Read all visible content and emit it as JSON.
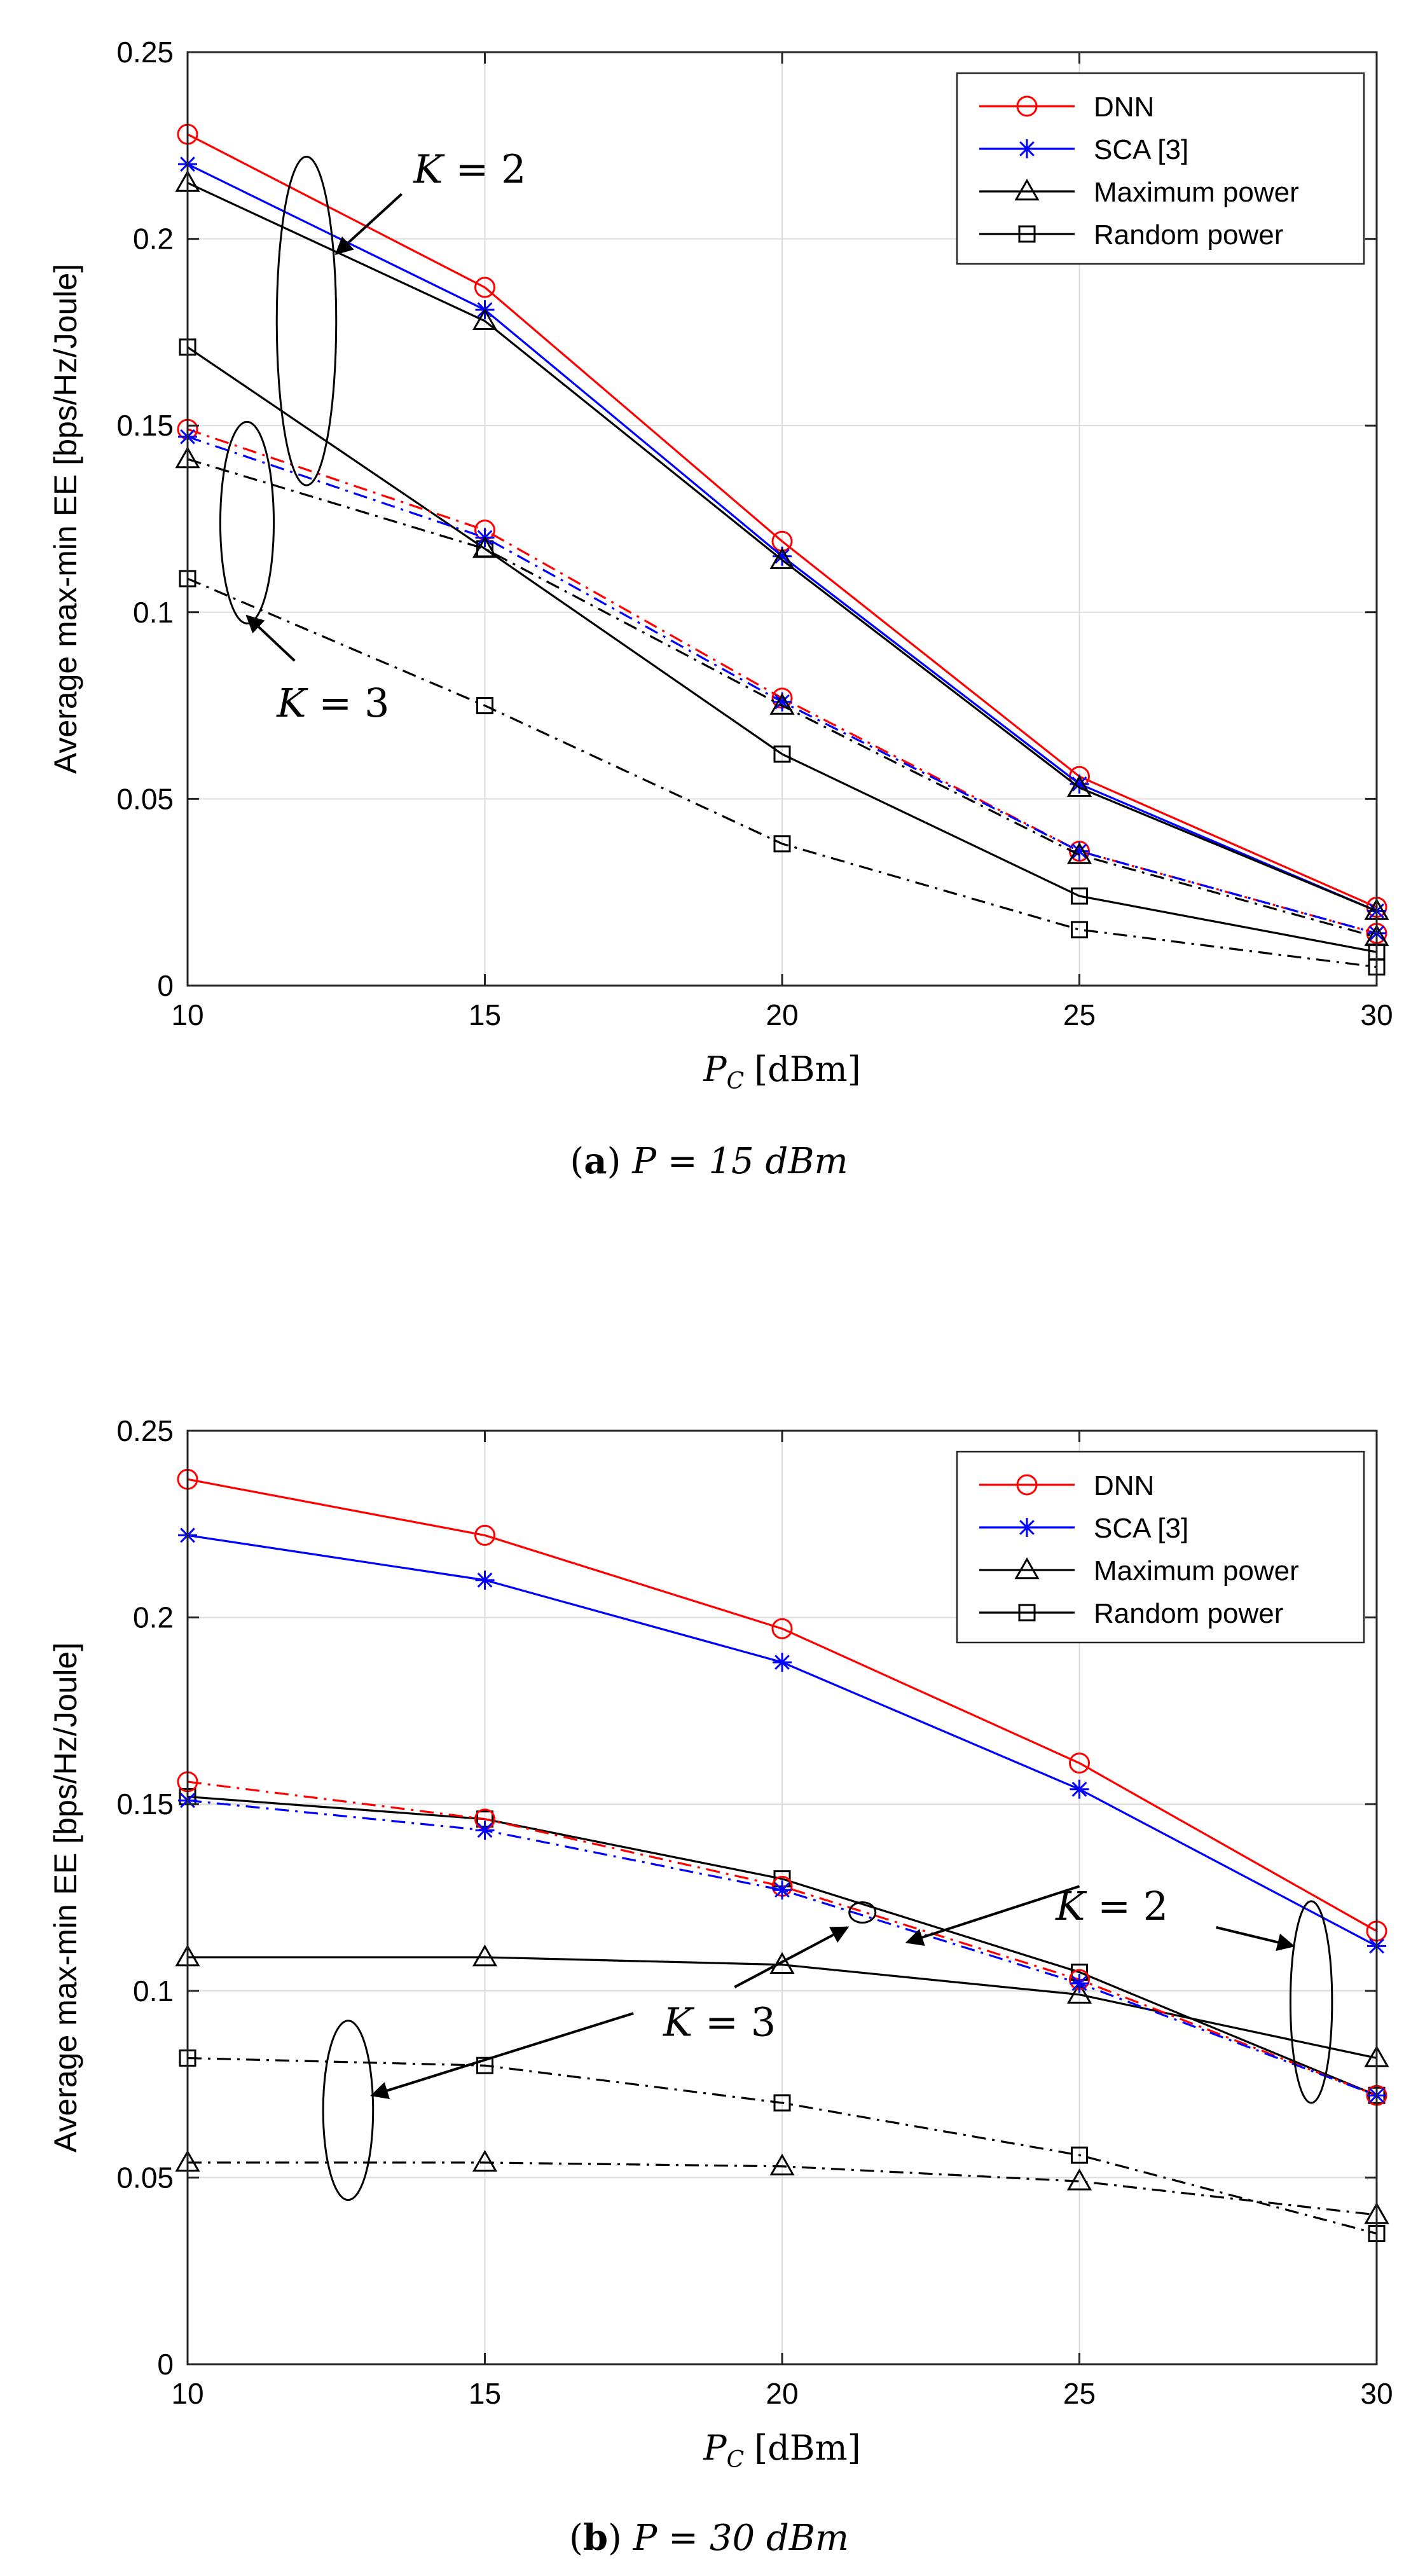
{
  "colors": {
    "dnn": "#ff0000",
    "sca": "#0000ff",
    "max_power": "#000000",
    "random_power": "#000000",
    "grid": "#dcdcdc"
  },
  "chart_data": [
    {
      "type": "line",
      "id": "a",
      "caption": {
        "label": "a",
        "text": "P = 15 dBm"
      },
      "ylabel": "Average max-min EE [bps/Hz/Joule]",
      "xlabel": {
        "main": "P",
        "sub": "C",
        "unit": "[dBm]"
      },
      "xlim": [
        10,
        30
      ],
      "ylim": [
        0,
        0.25
      ],
      "xticks": [
        10,
        15,
        20,
        25,
        30
      ],
      "yticks": [
        0,
        0.05,
        0.1,
        0.15,
        0.2,
        0.25
      ],
      "ytick_labels": [
        "0",
        "0.05",
        "0.1",
        "0.15",
        "0.2",
        "0.25"
      ],
      "grid": true,
      "legend_position": "top-right",
      "legend": [
        {
          "label": "DNN",
          "color": "#ff0000",
          "marker": "circle"
        },
        {
          "label": "SCA [3]",
          "color": "#0000ff",
          "marker": "star"
        },
        {
          "label": "Maximum power",
          "color": "#000000",
          "marker": "triangle"
        },
        {
          "label": "Random power",
          "color": "#000000",
          "marker": "square"
        }
      ],
      "x": [
        10,
        15,
        20,
        25,
        30
      ],
      "series": [
        {
          "name": "DNN K=2",
          "color": "#ff0000",
          "marker": "circle",
          "dash": "solid",
          "values": [
            0.228,
            0.187,
            0.119,
            0.056,
            0.021
          ]
        },
        {
          "name": "SCA [3] K=2",
          "color": "#0000ff",
          "marker": "star",
          "dash": "solid",
          "values": [
            0.22,
            0.181,
            0.115,
            0.054,
            0.02
          ]
        },
        {
          "name": "Maximum power K=2",
          "color": "#000000",
          "marker": "triangle",
          "dash": "solid",
          "values": [
            0.215,
            0.178,
            0.114,
            0.053,
            0.02
          ]
        },
        {
          "name": "Random power K=2",
          "color": "#000000",
          "marker": "square",
          "dash": "solid",
          "values": [
            0.171,
            0.117,
            0.062,
            0.024,
            0.009
          ]
        },
        {
          "name": "DNN K=3",
          "color": "#ff0000",
          "marker": "circle",
          "dash": "dashdot",
          "values": [
            0.149,
            0.122,
            0.077,
            0.036,
            0.014
          ]
        },
        {
          "name": "SCA [3] K=3",
          "color": "#0000ff",
          "marker": "star",
          "dash": "dashdot",
          "values": [
            0.147,
            0.12,
            0.076,
            0.036,
            0.014
          ]
        },
        {
          "name": "Maximum power K=3",
          "color": "#000000",
          "marker": "triangle",
          "dash": "dashdot",
          "values": [
            0.141,
            0.117,
            0.075,
            0.035,
            0.013
          ]
        },
        {
          "name": "Random power K=3",
          "color": "#000000",
          "marker": "square",
          "dash": "dashdot",
          "values": [
            0.109,
            0.075,
            0.038,
            0.015,
            0.005
          ]
        }
      ],
      "annotations": [
        {
          "label": "K = 2",
          "x": 13.8,
          "y": 0.215,
          "ellipse": {
            "cx": 12.0,
            "cy": 0.178,
            "rx": 0.5,
            "ry": 0.044
          },
          "arrow": {
            "from": [
              13.6,
              0.212
            ],
            "to": [
              12.5,
              0.196
            ]
          }
        },
        {
          "label": "K = 3",
          "x": 11.5,
          "y": 0.072,
          "ellipse": {
            "cx": 11.0,
            "cy": 0.124,
            "rx": 0.45,
            "ry": 0.027
          },
          "arrow": {
            "from": [
              11.8,
              0.087
            ],
            "to": [
              11.0,
              0.099
            ]
          }
        }
      ]
    },
    {
      "type": "line",
      "id": "b",
      "caption": {
        "label": "b",
        "text": "P = 30 dBm"
      },
      "ylabel": "Average max-min EE [bps/Hz/Joule]",
      "xlabel": {
        "main": "P",
        "sub": "C",
        "unit": "[dBm]"
      },
      "xlim": [
        10,
        30
      ],
      "ylim": [
        0,
        0.25
      ],
      "xticks": [
        10,
        15,
        20,
        25,
        30
      ],
      "yticks": [
        0,
        0.05,
        0.1,
        0.15,
        0.2,
        0.25
      ],
      "ytick_labels": [
        "0",
        "0.05",
        "0.1",
        "0.15",
        "0.2",
        "0.25"
      ],
      "grid": true,
      "legend_position": "top-right",
      "legend": [
        {
          "label": "DNN",
          "color": "#ff0000",
          "marker": "circle"
        },
        {
          "label": "SCA [3]",
          "color": "#0000ff",
          "marker": "star"
        },
        {
          "label": "Maximum power",
          "color": "#000000",
          "marker": "triangle"
        },
        {
          "label": "Random power",
          "color": "#000000",
          "marker": "square"
        }
      ],
      "x": [
        10,
        15,
        20,
        25,
        30
      ],
      "series": [
        {
          "name": "DNN K=2",
          "color": "#ff0000",
          "marker": "circle",
          "dash": "solid",
          "values": [
            0.237,
            0.222,
            0.197,
            0.161,
            0.116
          ]
        },
        {
          "name": "SCA [3] K=2",
          "color": "#0000ff",
          "marker": "star",
          "dash": "solid",
          "values": [
            0.222,
            0.21,
            0.188,
            0.154,
            0.112
          ]
        },
        {
          "name": "Random power K=2",
          "color": "#000000",
          "marker": "square",
          "dash": "solid",
          "values": [
            0.152,
            0.146,
            0.13,
            0.105,
            0.072
          ]
        },
        {
          "name": "Maximum power K=2",
          "color": "#000000",
          "marker": "triangle",
          "dash": "solid",
          "values": [
            0.109,
            0.109,
            0.107,
            0.099,
            0.082
          ]
        },
        {
          "name": "DNN K=3",
          "color": "#ff0000",
          "marker": "circle",
          "dash": "dashdot",
          "values": [
            0.156,
            0.146,
            0.128,
            0.103,
            0.072
          ]
        },
        {
          "name": "SCA [3] K=3",
          "color": "#0000ff",
          "marker": "star",
          "dash": "dashdot",
          "values": [
            0.151,
            0.143,
            0.127,
            0.102,
            0.072
          ]
        },
        {
          "name": "Random power K=3",
          "color": "#000000",
          "marker": "square",
          "dash": "dashdot",
          "values": [
            0.082,
            0.08,
            0.07,
            0.056,
            0.035
          ]
        },
        {
          "name": "Maximum power K=3",
          "color": "#000000",
          "marker": "triangle",
          "dash": "dashdot",
          "values": [
            0.054,
            0.054,
            0.053,
            0.049,
            0.04
          ]
        }
      ],
      "annotations": [
        {
          "label": "K = 2",
          "x": 24.6,
          "y": 0.119,
          "ellipse": {
            "cx": 28.9,
            "cy": 0.097,
            "rx": 0.35,
            "ry": 0.027
          },
          "arrows": [
            {
              "from": [
                25.0,
                0.128
              ],
              "to": [
                22.1,
                0.113
              ]
            },
            {
              "from": [
                27.3,
                0.117
              ],
              "to": [
                28.6,
                0.112
              ]
            }
          ],
          "small_ellipse": {
            "cx": 21.35,
            "cy": 0.121,
            "rx": 0.22,
            "ry": 0.003
          }
        },
        {
          "label": "K = 3",
          "x": 18.0,
          "y": 0.088,
          "ellipse": {
            "cx": 12.7,
            "cy": 0.068,
            "rx": 0.42,
            "ry": 0.024
          },
          "arrows": [
            {
              "from": [
                17.5,
                0.094
              ],
              "to": [
                13.1,
                0.072
              ]
            },
            {
              "from": [
                19.2,
                0.101
              ],
              "to": [
                21.1,
                0.117
              ]
            }
          ]
        }
      ]
    }
  ]
}
